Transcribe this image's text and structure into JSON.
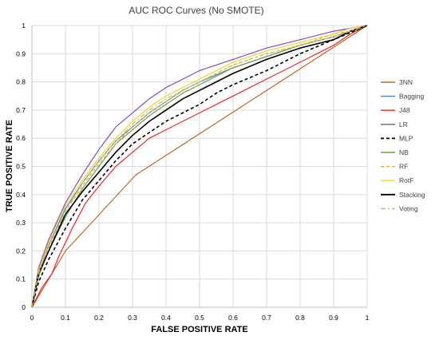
{
  "chart_data": {
    "type": "line",
    "title": "AUC ROC Curves (No SMOTE)",
    "xlabel": "FALSE POSITIVE RATE",
    "ylabel": "TRUE POSITIVE RATE",
    "xlim": [
      0,
      1
    ],
    "ylim": [
      0,
      1
    ],
    "xticks": [
      "0",
      "0.1",
      "0.2",
      "0.3",
      "0.4",
      "0.5",
      "0.6",
      "0.7",
      "0.8",
      "0.9",
      "1"
    ],
    "yticks": [
      "0",
      "0.1",
      "0.2",
      "0.3",
      "0.4",
      "0.5",
      "0.6",
      "0.7",
      "0.8",
      "0.9",
      "1"
    ],
    "grid": true,
    "legend": "right",
    "series": [
      {
        "name": "3NN",
        "color": "#C0682A",
        "dash": "solid",
        "x": [
          0,
          0.1,
          0.31,
          1
        ],
        "y": [
          0,
          0.2,
          0.47,
          1
        ]
      },
      {
        "name": "Bagging",
        "color": "#4B86C0",
        "dash": "solid",
        "x": [
          0,
          0.02,
          0.05,
          0.1,
          0.15,
          0.2,
          0.25,
          0.3,
          0.35,
          0.4,
          0.45,
          0.5,
          0.6,
          0.7,
          0.8,
          0.9,
          0.95,
          1
        ],
        "y": [
          0,
          0.13,
          0.22,
          0.35,
          0.44,
          0.52,
          0.59,
          0.64,
          0.69,
          0.73,
          0.77,
          0.8,
          0.85,
          0.89,
          0.93,
          0.96,
          0.98,
          1
        ]
      },
      {
        "name": "J48",
        "color": "#E8262A",
        "dash": "solid",
        "x": [
          0,
          0.03,
          0.06,
          0.08,
          0.12,
          0.16,
          0.2,
          0.25,
          0.3,
          0.35,
          0.4,
          0.45,
          0.5,
          0.55,
          0.6,
          0.7,
          0.8,
          0.9,
          0.95,
          1
        ],
        "y": [
          0,
          0.07,
          0.12,
          0.18,
          0.28,
          0.37,
          0.43,
          0.5,
          0.55,
          0.6,
          0.63,
          0.66,
          0.69,
          0.72,
          0.75,
          0.81,
          0.87,
          0.93,
          0.97,
          1
        ]
      },
      {
        "name": "LR",
        "color": "#7F4FB8",
        "dash": "solid",
        "x": [
          0,
          0.02,
          0.05,
          0.1,
          0.15,
          0.2,
          0.25,
          0.3,
          0.35,
          0.4,
          0.45,
          0.5,
          0.6,
          0.7,
          0.8,
          0.9,
          0.95,
          1
        ],
        "y": [
          0,
          0.14,
          0.24,
          0.37,
          0.47,
          0.56,
          0.64,
          0.69,
          0.74,
          0.78,
          0.81,
          0.84,
          0.88,
          0.92,
          0.95,
          0.98,
          0.99,
          1
        ]
      },
      {
        "name": "MLP",
        "color": "#000000",
        "dash": "dashed",
        "x": [
          0,
          0.02,
          0.05,
          0.1,
          0.15,
          0.2,
          0.25,
          0.3,
          0.35,
          0.4,
          0.45,
          0.5,
          0.55,
          0.6,
          0.7,
          0.8,
          0.9,
          1
        ],
        "y": [
          0,
          0.09,
          0.17,
          0.28,
          0.38,
          0.45,
          0.52,
          0.58,
          0.62,
          0.66,
          0.69,
          0.72,
          0.76,
          0.79,
          0.84,
          0.9,
          0.95,
          1
        ]
      },
      {
        "name": "NB",
        "color": "#70A040",
        "dash": "solid",
        "x": [
          0,
          0.02,
          0.05,
          0.1,
          0.15,
          0.2,
          0.25,
          0.3,
          0.35,
          0.4,
          0.45,
          0.5,
          0.6,
          0.7,
          0.8,
          0.9,
          0.95,
          1
        ],
        "y": [
          0,
          0.11,
          0.2,
          0.32,
          0.42,
          0.5,
          0.58,
          0.63,
          0.68,
          0.72,
          0.76,
          0.79,
          0.85,
          0.89,
          0.93,
          0.96,
          0.98,
          1
        ]
      },
      {
        "name": "RF",
        "color": "#E8A048",
        "dash": "dashed",
        "x": [
          0,
          0.02,
          0.05,
          0.1,
          0.15,
          0.2,
          0.25,
          0.3,
          0.35,
          0.4,
          0.45,
          0.5,
          0.6,
          0.7,
          0.8,
          0.9,
          0.95,
          1
        ],
        "y": [
          0,
          0.12,
          0.21,
          0.34,
          0.43,
          0.51,
          0.58,
          0.64,
          0.69,
          0.73,
          0.77,
          0.8,
          0.86,
          0.9,
          0.93,
          0.97,
          0.98,
          1
        ]
      },
      {
        "name": "RotF",
        "color": "#F2D040",
        "dash": "solid",
        "x": [
          0,
          0.02,
          0.05,
          0.1,
          0.15,
          0.2,
          0.25,
          0.3,
          0.35,
          0.4,
          0.45,
          0.5,
          0.6,
          0.7,
          0.8,
          0.9,
          0.95,
          1
        ],
        "y": [
          0,
          0.13,
          0.23,
          0.36,
          0.45,
          0.53,
          0.6,
          0.66,
          0.71,
          0.75,
          0.78,
          0.81,
          0.87,
          0.91,
          0.94,
          0.97,
          0.99,
          1
        ]
      },
      {
        "name": "Stacking",
        "color": "#000000",
        "dash": "solid",
        "x": [
          0,
          0.02,
          0.05,
          0.1,
          0.15,
          0.2,
          0.25,
          0.3,
          0.35,
          0.4,
          0.45,
          0.5,
          0.6,
          0.7,
          0.8,
          0.9,
          0.95,
          1
        ],
        "y": [
          0,
          0.12,
          0.2,
          0.33,
          0.41,
          0.48,
          0.55,
          0.61,
          0.66,
          0.7,
          0.74,
          0.77,
          0.83,
          0.88,
          0.92,
          0.95,
          0.98,
          1
        ]
      },
      {
        "name": "Voting",
        "color": "#C8C040",
        "dash": "dashdot",
        "x": [
          0,
          0.02,
          0.05,
          0.1,
          0.15,
          0.2,
          0.25,
          0.3,
          0.35,
          0.4,
          0.45,
          0.5,
          0.6,
          0.7,
          0.8,
          0.9,
          0.95,
          1
        ],
        "y": [
          0,
          0.12,
          0.22,
          0.34,
          0.44,
          0.52,
          0.59,
          0.65,
          0.7,
          0.74,
          0.77,
          0.8,
          0.86,
          0.9,
          0.93,
          0.96,
          0.98,
          1
        ]
      }
    ]
  }
}
